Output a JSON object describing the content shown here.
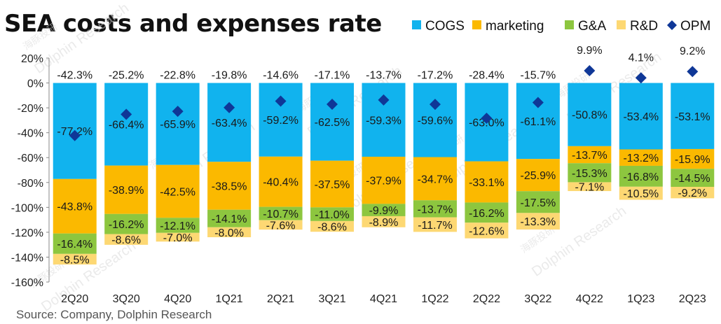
{
  "title": "SEA costs and expenses rate",
  "source": "Source: Company, Dolphin Research",
  "watermark": "Dolphin Research",
  "watermark_cn": "海豚投研",
  "chart_data": {
    "type": "bar",
    "stacked": true,
    "categories": [
      "2Q20",
      "3Q20",
      "4Q20",
      "1Q21",
      "2Q21",
      "3Q21",
      "4Q21",
      "1Q22",
      "2Q22",
      "3Q22",
      "4Q22",
      "1Q23",
      "2Q23"
    ],
    "ylim": [
      -160,
      20
    ],
    "yticks": [
      20,
      0,
      -20,
      -40,
      -60,
      -80,
      -100,
      -120,
      -140,
      -160
    ],
    "ytick_labels": [
      "20%",
      "0%",
      "-20%",
      "-40%",
      "-60%",
      "-80%",
      "-100%",
      "-120%",
      "-140%",
      "-160%"
    ],
    "legend_position": "top-right",
    "series": [
      {
        "name": "COGS",
        "color": "#11b3ee",
        "values": [
          -77.2,
          -66.4,
          -65.9,
          -63.4,
          -59.2,
          -62.5,
          -59.3,
          -59.6,
          -63.0,
          -61.1,
          -50.8,
          -53.4,
          -53.1
        ],
        "labels": [
          "-77.2%",
          "-66.4%",
          "-65.9%",
          "-63.4%",
          "-59.2%",
          "-62.5%",
          "-59.3%",
          "-59.6%",
          "-63.0%",
          "-61.1%",
          "-50.8%",
          "-53.4%",
          "-53.1%"
        ]
      },
      {
        "name": "marketing",
        "color": "#fbb900",
        "values": [
          -43.8,
          -38.9,
          -42.5,
          -38.5,
          -40.4,
          -37.5,
          -37.9,
          -34.7,
          -33.1,
          -25.9,
          -13.7,
          -13.2,
          -15.9
        ],
        "labels": [
          "-43.8%",
          "-38.9%",
          "-42.5%",
          "-38.5%",
          "-40.4%",
          "-37.5%",
          "-37.9%",
          "-34.7%",
          "-33.1%",
          "-25.9%",
          "-13.7%",
          "-13.2%",
          "-15.9%"
        ]
      },
      {
        "name": "G&A",
        "color": "#8dc63f",
        "values": [
          -16.4,
          -16.2,
          -12.1,
          -14.1,
          -10.7,
          -11.0,
          -9.9,
          -13.7,
          -16.2,
          -17.5,
          -15.3,
          -16.8,
          -14.5
        ],
        "labels": [
          "-16.4%",
          "-16.2%",
          "-12.1%",
          "-14.1%",
          "-10.7%",
          "-11.0%",
          "-9.9%",
          "-13.7%",
          "-16.2%",
          "-17.5%",
          "-15.3%",
          "-16.8%",
          "-14.5%"
        ]
      },
      {
        "name": "R&D",
        "color": "#fdd873",
        "values": [
          -8.5,
          -8.6,
          -7.0,
          -8.0,
          -7.6,
          -8.6,
          -8.9,
          -11.7,
          -12.6,
          -13.3,
          -7.1,
          -10.5,
          -9.2
        ],
        "labels": [
          "-8.5%",
          "-8.6%",
          "-7.0%",
          "-8.0%",
          "-7.6%",
          "-8.6%",
          "-8.9%",
          "-11.7%",
          "-12.6%",
          "-13.3%",
          "-7.1%",
          "-10.5%",
          "-9.2%"
        ]
      },
      {
        "name": "OPM",
        "type": "scatter",
        "marker": "diamond",
        "color": "#0f3797",
        "values": [
          -42.3,
          -25.2,
          -22.8,
          -19.8,
          -14.6,
          -17.1,
          -13.7,
          -17.2,
          -28.4,
          -15.7,
          9.9,
          4.1,
          9.2
        ],
        "labels": [
          "-42.3%",
          "-25.2%",
          "-22.8%",
          "-19.8%",
          "-14.6%",
          "-17.1%",
          "-13.7%",
          "-17.2%",
          "-28.4%",
          "-15.7%",
          "9.9%",
          "4.1%",
          "9.2%"
        ]
      }
    ]
  }
}
